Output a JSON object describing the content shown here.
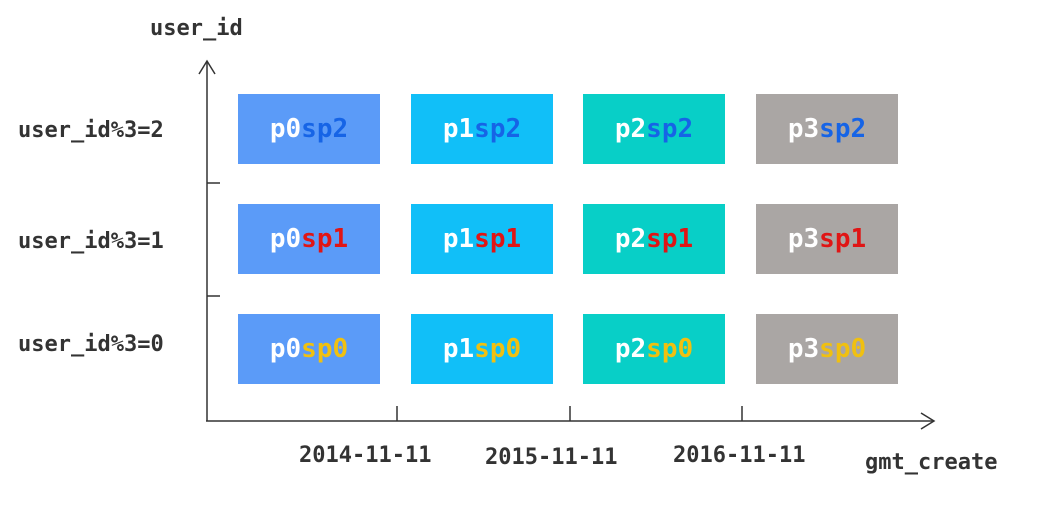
{
  "axes": {
    "y_title": "user_id",
    "x_title": "gmt_create",
    "y_labels": [
      "user_id%3=2",
      "user_id%3=1",
      "user_id%3=0"
    ],
    "x_labels": [
      "2014-11-11",
      "2015-11-11",
      "2016-11-11"
    ]
  },
  "colors": {
    "p0": "#5b9bf8",
    "p1": "#11bff8",
    "p2": "#08cfc7",
    "p3": "#aaa6a4",
    "sp2": "#1664e6",
    "sp1": "#e01515",
    "sp0": "#f0c010"
  },
  "grid": {
    "rows": [
      {
        "cells": [
          {
            "partition": "p0",
            "subpartition": "sp2"
          },
          {
            "partition": "p1",
            "subpartition": "sp2"
          },
          {
            "partition": "p2",
            "subpartition": "sp2"
          },
          {
            "partition": "p3",
            "subpartition": "sp2"
          }
        ]
      },
      {
        "cells": [
          {
            "partition": "p0",
            "subpartition": "sp1"
          },
          {
            "partition": "p1",
            "subpartition": "sp1"
          },
          {
            "partition": "p2",
            "subpartition": "sp1"
          },
          {
            "partition": "p3",
            "subpartition": "sp1"
          }
        ]
      },
      {
        "cells": [
          {
            "partition": "p0",
            "subpartition": "sp0"
          },
          {
            "partition": "p1",
            "subpartition": "sp0"
          },
          {
            "partition": "p2",
            "subpartition": "sp0"
          },
          {
            "partition": "p3",
            "subpartition": "sp0"
          }
        ]
      }
    ]
  }
}
